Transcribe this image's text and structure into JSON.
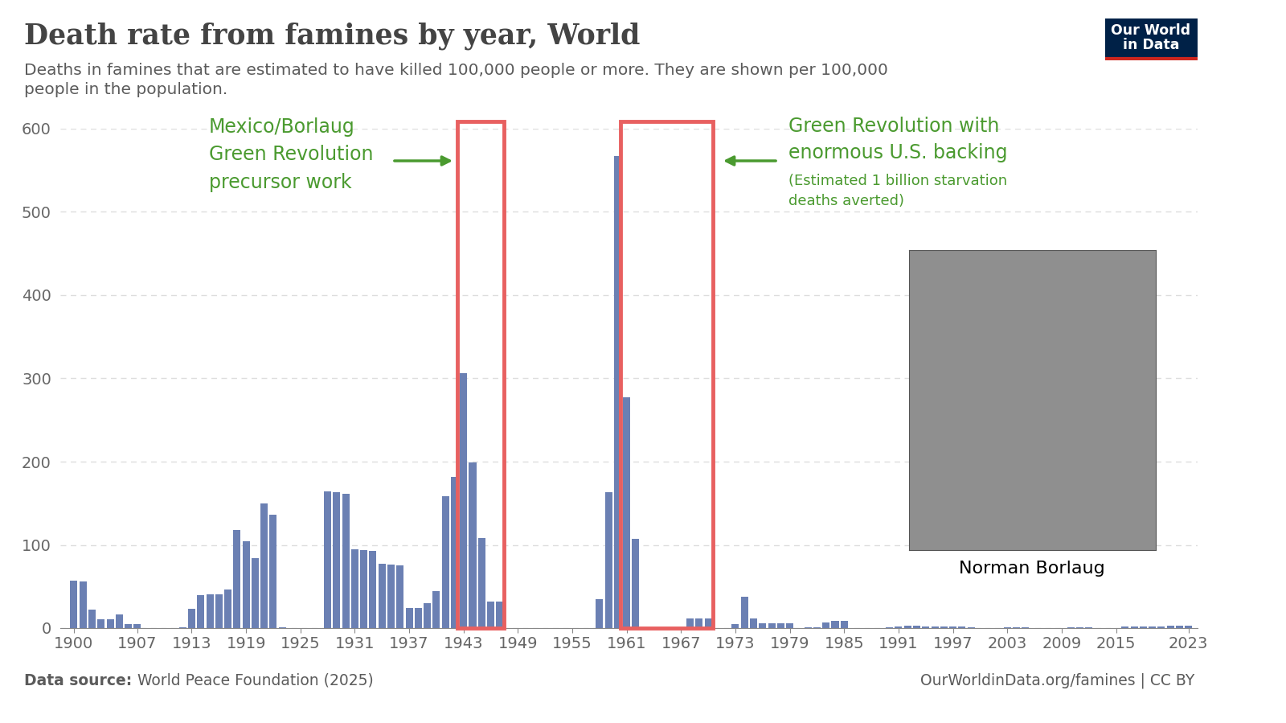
{
  "chart_data": {
    "type": "bar",
    "title": "Death rate from famines by year, World",
    "subtitle": "Deaths in famines that are estimated to have killed 100,000 people or more. They are shown per 100,000 people in the population.",
    "logo": "Our World\nin Data",
    "source_label": "Data source:",
    "source": "World Peace Foundation (2025)",
    "footer_right": "OurWorldinData.org/famines | CC BY",
    "color": "#6b80b3",
    "x": [
      1900,
      1901,
      1902,
      1903,
      1904,
      1905,
      1906,
      1907,
      1908,
      1909,
      1910,
      1911,
      1912,
      1913,
      1914,
      1915,
      1916,
      1917,
      1918,
      1919,
      1920,
      1921,
      1922,
      1923,
      1924,
      1925,
      1926,
      1927,
      1928,
      1929,
      1930,
      1931,
      1932,
      1933,
      1934,
      1935,
      1936,
      1937,
      1938,
      1939,
      1940,
      1941,
      1942,
      1943,
      1944,
      1945,
      1946,
      1947,
      1948,
      1949,
      1950,
      1951,
      1952,
      1953,
      1954,
      1955,
      1956,
      1957,
      1958,
      1959,
      1960,
      1961,
      1962,
      1963,
      1964,
      1965,
      1966,
      1967,
      1968,
      1969,
      1970,
      1971,
      1972,
      1973,
      1974,
      1975,
      1976,
      1977,
      1978,
      1979,
      1980,
      1981,
      1982,
      1983,
      1984,
      1985,
      1986,
      1987,
      1988,
      1989,
      1990,
      1991,
      1992,
      1993,
      1994,
      1995,
      1996,
      1997,
      1998,
      1999,
      2000,
      2001,
      2002,
      2003,
      2004,
      2005,
      2006,
      2007,
      2008,
      2009,
      2010,
      2011,
      2012,
      2013,
      2014,
      2015,
      2016,
      2017,
      2018,
      2019,
      2020,
      2021,
      2022,
      2023
    ],
    "values": [
      57,
      56,
      22,
      11,
      11,
      16,
      5,
      5,
      0,
      0,
      0,
      0,
      1,
      23,
      40,
      41,
      41,
      46,
      118,
      104,
      84,
      150,
      136,
      1,
      0,
      0,
      0,
      0,
      164,
      163,
      161,
      95,
      94,
      93,
      77,
      76,
      75,
      24,
      24,
      30,
      44,
      158,
      182,
      306,
      199,
      108,
      32,
      32,
      0,
      0,
      0,
      0,
      0,
      0,
      0,
      0,
      0,
      0,
      35,
      163,
      567,
      277,
      107,
      0,
      0,
      0,
      0,
      0,
      12,
      12,
      12,
      0,
      0,
      5,
      38,
      12,
      6,
      6,
      6,
      6,
      0,
      1,
      1,
      7,
      9,
      9,
      0,
      0,
      0,
      0,
      1,
      2,
      3,
      3,
      2,
      2,
      2,
      2,
      2,
      1,
      0,
      0,
      0,
      1,
      1,
      1,
      0,
      0,
      0,
      0,
      1,
      1,
      1,
      0,
      0,
      0,
      2,
      2,
      2,
      2,
      2,
      3,
      3,
      3
    ],
    "xlim": [
      1898.5,
      2024
    ],
    "xticks": [
      1900,
      1907,
      1913,
      1919,
      1925,
      1931,
      1937,
      1943,
      1949,
      1955,
      1961,
      1967,
      1973,
      1979,
      1985,
      1991,
      1997,
      2003,
      2009,
      2015,
      2023
    ],
    "ylim": [
      0,
      600
    ],
    "yticks": [
      0,
      100,
      200,
      300,
      400,
      500,
      600
    ],
    "grid": true,
    "highlights": [
      {
        "start": 1943,
        "end": 1947
      },
      {
        "start": 1961,
        "end": 1970
      }
    ],
    "annotations": [
      {
        "text": "Mexico/Borlaug\nGreen Revolution\nprecursor work"
      },
      {
        "text": "Green Revolution with\nenormous U.S. backing"
      },
      {
        "text": "(Estimated 1 billion starvation\ndeaths averted)"
      }
    ],
    "photo_caption": "Norman Borlaug"
  }
}
